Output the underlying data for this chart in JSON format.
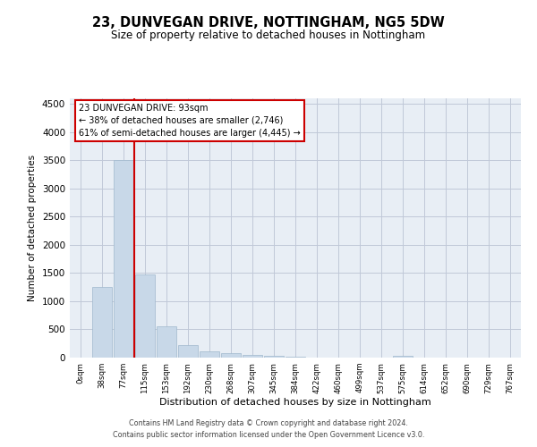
{
  "title": "23, DUNVEGAN DRIVE, NOTTINGHAM, NG5 5DW",
  "subtitle": "Size of property relative to detached houses in Nottingham",
  "xlabel": "Distribution of detached houses by size in Nottingham",
  "ylabel": "Number of detached properties",
  "bar_color": "#c8d8e8",
  "bar_edge_color": "#a0b8cc",
  "grid_color": "#c0c8d8",
  "bg_color": "#e8eef5",
  "bin_labels": [
    "0sqm",
    "38sqm",
    "77sqm",
    "115sqm",
    "153sqm",
    "192sqm",
    "230sqm",
    "268sqm",
    "307sqm",
    "345sqm",
    "384sqm",
    "422sqm",
    "460sqm",
    "499sqm",
    "537sqm",
    "575sqm",
    "614sqm",
    "652sqm",
    "690sqm",
    "729sqm",
    "767sqm"
  ],
  "bar_values": [
    5,
    1250,
    3500,
    1470,
    560,
    220,
    110,
    75,
    55,
    35,
    20,
    0,
    0,
    0,
    0,
    30,
    0,
    0,
    0,
    0,
    0
  ],
  "ylim": [
    0,
    4600
  ],
  "yticks": [
    0,
    500,
    1000,
    1500,
    2000,
    2500,
    3000,
    3500,
    4000,
    4500
  ],
  "property_bin_index": 2,
  "vline_color": "#cc0000",
  "annotation_box_color": "#cc0000",
  "annotation_text": "23 DUNVEGAN DRIVE: 93sqm\n← 38% of detached houses are smaller (2,746)\n61% of semi-detached houses are larger (4,445) →",
  "footer_line1": "Contains HM Land Registry data © Crown copyright and database right 2024.",
  "footer_line2": "Contains public sector information licensed under the Open Government Licence v3.0."
}
